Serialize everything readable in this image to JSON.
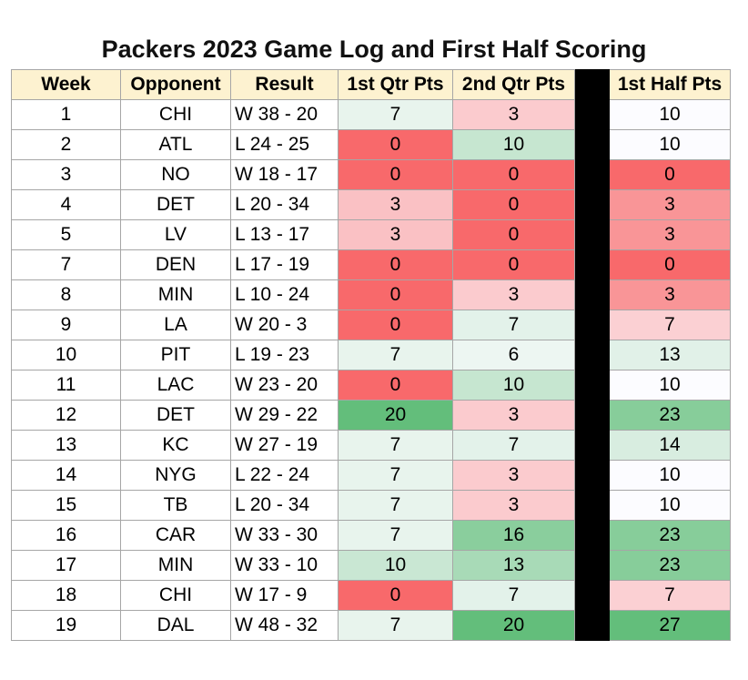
{
  "title": "Packers 2023 Game Log and First Half Scoring",
  "chart_data": {
    "type": "table",
    "title": "Packers 2023 Game Log and First Half Scoring",
    "columns": [
      "Week",
      "Opponent",
      "Result",
      "1st Qtr Pts",
      "2nd Qtr Pts",
      "1st Half Pts"
    ],
    "rows": [
      {
        "week": "1",
        "opponent": "CHI",
        "result": "W 38 - 20",
        "q1": 7,
        "q2": 3,
        "half": 10
      },
      {
        "week": "2",
        "opponent": "ATL",
        "result": "L 24 - 25",
        "q1": 0,
        "q2": 10,
        "half": 10
      },
      {
        "week": "3",
        "opponent": "NO",
        "result": "W 18 - 17",
        "q1": 0,
        "q2": 0,
        "half": 0
      },
      {
        "week": "4",
        "opponent": "DET",
        "result": "L 20 - 34",
        "q1": 3,
        "q2": 0,
        "half": 3
      },
      {
        "week": "5",
        "opponent": "LV",
        "result": "L 13 - 17",
        "q1": 3,
        "q2": 0,
        "half": 3
      },
      {
        "week": "7",
        "opponent": "DEN",
        "result": "L 17 - 19",
        "q1": 0,
        "q2": 0,
        "half": 0
      },
      {
        "week": "8",
        "opponent": "MIN",
        "result": "L 10 - 24",
        "q1": 0,
        "q2": 3,
        "half": 3
      },
      {
        "week": "9",
        "opponent": "LA",
        "result": "W 20 - 3",
        "q1": 0,
        "q2": 7,
        "half": 7
      },
      {
        "week": "10",
        "opponent": "PIT",
        "result": "L 19 - 23",
        "q1": 7,
        "q2": 6,
        "half": 13
      },
      {
        "week": "11",
        "opponent": "LAC",
        "result": "W 23 - 20",
        "q1": 0,
        "q2": 10,
        "half": 10
      },
      {
        "week": "12",
        "opponent": "DET",
        "result": "W 29 - 22",
        "q1": 20,
        "q2": 3,
        "half": 23
      },
      {
        "week": "13",
        "opponent": "KC",
        "result": "W 27 - 19",
        "q1": 7,
        "q2": 7,
        "half": 14
      },
      {
        "week": "14",
        "opponent": "NYG",
        "result": "L 22 - 24",
        "q1": 7,
        "q2": 3,
        "half": 10
      },
      {
        "week": "15",
        "opponent": "TB",
        "result": "L 20 - 34",
        "q1": 7,
        "q2": 3,
        "half": 10
      },
      {
        "week": "16",
        "opponent": "CAR",
        "result": "W 33 - 30",
        "q1": 7,
        "q2": 16,
        "half": 23
      },
      {
        "week": "17",
        "opponent": "MIN",
        "result": "W 33 - 10",
        "q1": 10,
        "q2": 13,
        "half": 23
      },
      {
        "week": "18",
        "opponent": "CHI",
        "result": "W 17 - 9",
        "q1": 0,
        "q2": 7,
        "half": 7
      },
      {
        "week": "19",
        "opponent": "DAL",
        "result": "W 48 - 32",
        "q1": 7,
        "q2": 20,
        "half": 27
      }
    ],
    "color_scale": {
      "low": "#f8696b",
      "mid": "#fcfcff",
      "high": "#63be7b",
      "header_background": "#fdf2d0",
      "separator": "#000000"
    }
  }
}
